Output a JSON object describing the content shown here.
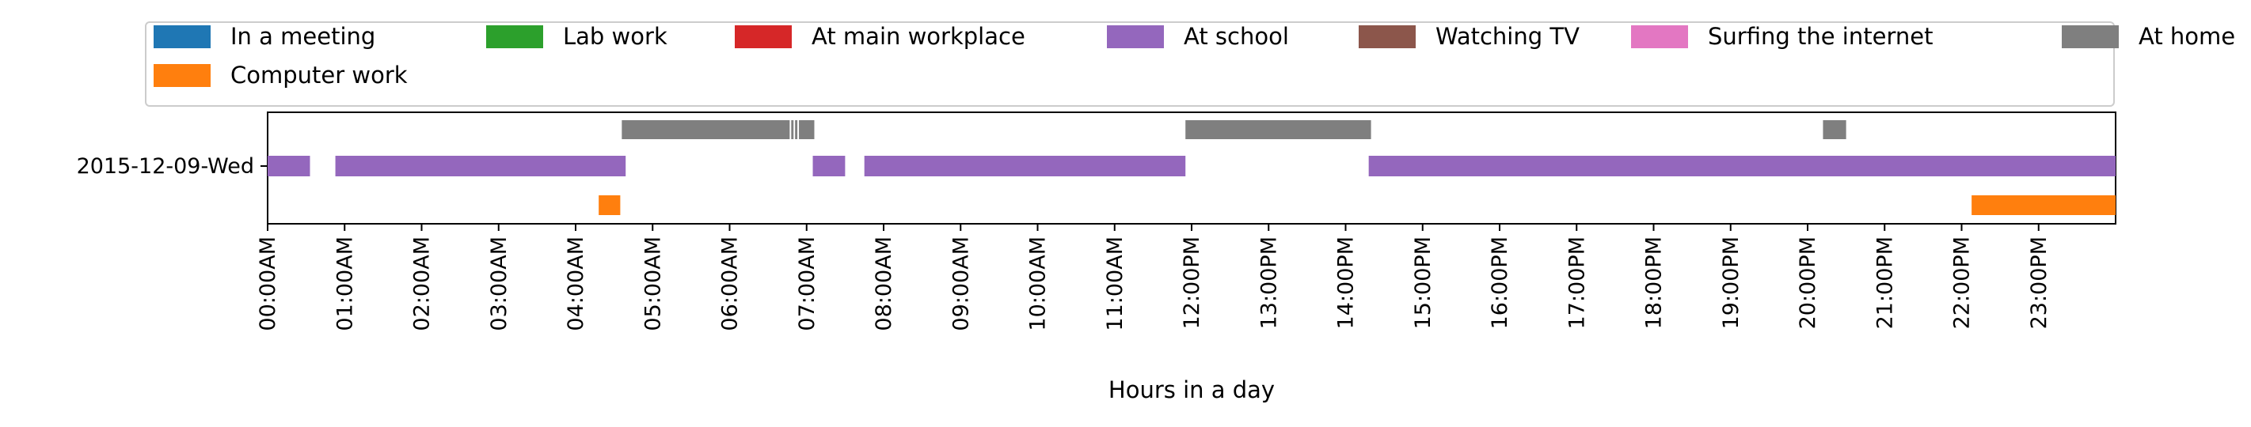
{
  "chart_data": {
    "type": "timeline",
    "xlabel": "Hours in a day",
    "ylabel": "",
    "xlim": [
      0,
      24
    ],
    "day_label": "2015-12-09-Wed",
    "tick_labels": [
      "00:00AM",
      "01:00AM",
      "02:00AM",
      "03:00AM",
      "04:00AM",
      "05:00AM",
      "06:00AM",
      "07:00AM",
      "08:00AM",
      "09:00AM",
      "10:00AM",
      "11:00AM",
      "12:00PM",
      "13:00PM",
      "14:00PM",
      "15:00PM",
      "16:00PM",
      "17:00PM",
      "18:00PM",
      "19:00PM",
      "20:00PM",
      "21:00PM",
      "22:00PM",
      "23:00PM"
    ],
    "legend_position": "top",
    "series": [
      {
        "name": "In a meeting",
        "color": "#1f77b4",
        "lane": "middle",
        "intervals": []
      },
      {
        "name": "Computer work",
        "color": "#ff7f0e",
        "lane": "bottom",
        "intervals": [
          [
            4.3,
            4.58
          ],
          [
            22.13,
            24.0
          ]
        ]
      },
      {
        "name": "Lab work",
        "color": "#2ca02c",
        "lane": "middle",
        "intervals": []
      },
      {
        "name": "At main workplace",
        "color": "#d62728",
        "lane": "middle",
        "intervals": []
      },
      {
        "name": "At school",
        "color": "#9467bd",
        "lane": "middle",
        "intervals": [
          [
            0.0,
            0.55
          ],
          [
            0.88,
            4.65
          ],
          [
            7.08,
            7.5
          ],
          [
            7.75,
            11.92
          ],
          [
            14.3,
            24.0
          ]
        ]
      },
      {
        "name": "Watching TV",
        "color": "#8c564b",
        "lane": "middle",
        "intervals": []
      },
      {
        "name": "Surfing the internet",
        "color": "#e377c2",
        "lane": "middle",
        "intervals": []
      },
      {
        "name": "At home",
        "color": "#7f7f7f",
        "lane": "top",
        "intervals": [
          [
            4.6,
            6.78
          ],
          [
            6.8,
            6.83
          ],
          [
            6.85,
            6.88
          ],
          [
            6.9,
            7.1
          ],
          [
            11.92,
            14.33
          ],
          [
            20.2,
            20.5
          ]
        ]
      }
    ]
  }
}
